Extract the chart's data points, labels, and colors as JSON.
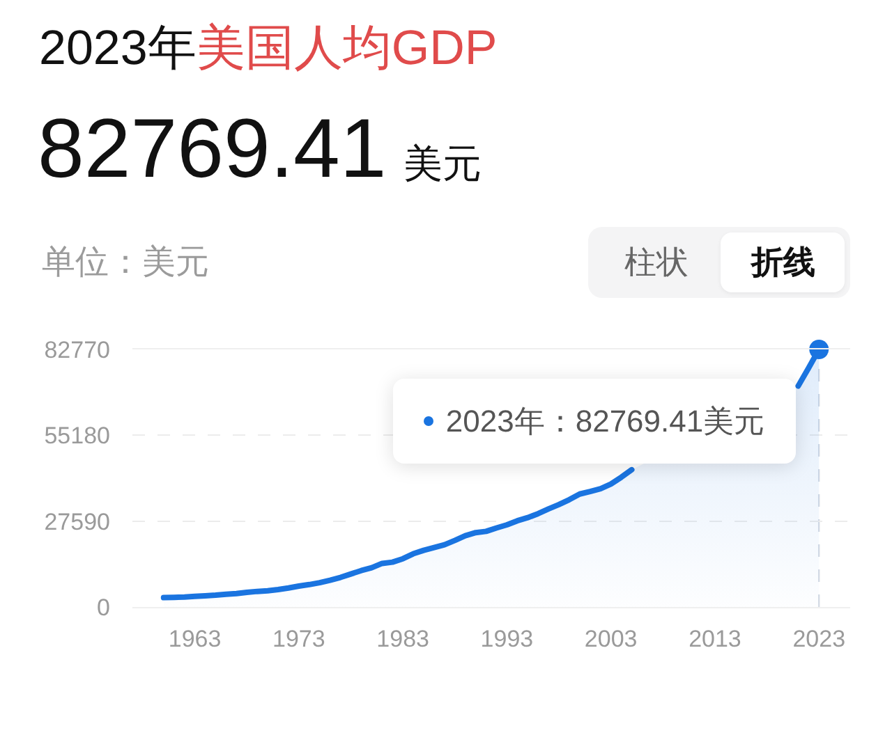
{
  "chart_data": {
    "type": "area",
    "title": "2023年美国人均GDP",
    "subtitle": "82769.41 美元",
    "ylabel": "单位：美元",
    "x": [
      1960,
      1961,
      1962,
      1963,
      1964,
      1965,
      1966,
      1967,
      1968,
      1969,
      1970,
      1971,
      1972,
      1973,
      1974,
      1975,
      1976,
      1977,
      1978,
      1979,
      1980,
      1981,
      1982,
      1983,
      1984,
      1985,
      1986,
      1987,
      1988,
      1989,
      1990,
      1991,
      1992,
      1993,
      1994,
      1995,
      1996,
      1997,
      1998,
      1999,
      2000,
      2001,
      2002,
      2003,
      2004,
      2005,
      2006,
      2007,
      2008,
      2009,
      2010,
      2011,
      2012,
      2013,
      2014,
      2015,
      2016,
      2017,
      2018,
      2019,
      2020,
      2021,
      2022,
      2023
    ],
    "values": [
      3000,
      3100,
      3200,
      3400,
      3600,
      3800,
      4100,
      4300,
      4700,
      5000,
      5200,
      5600,
      6100,
      6700,
      7200,
      7800,
      8600,
      9500,
      10600,
      11700,
      12600,
      14000,
      14400,
      15500,
      17100,
      18200,
      19100,
      20000,
      21400,
      22900,
      23900,
      24300,
      25400,
      26400,
      27700,
      28700,
      30000,
      31500,
      32900,
      34500,
      36300,
      37100,
      38000,
      39500,
      41700,
      44100,
      null,
      null,
      null,
      null,
      null,
      null,
      null,
      null,
      null,
      null,
      null,
      null,
      null,
      null,
      null,
      71000,
      76800,
      82769.41
    ],
    "color": "#1a74e0",
    "xlim": [
      1957,
      2026
    ],
    "xticks": [
      1963,
      1973,
      1983,
      1993,
      2003,
      2013,
      2023
    ],
    "ylim": [
      0,
      82770
    ],
    "yticks": [
      0,
      27590,
      55180,
      82770
    ],
    "grid": "y",
    "ref_lines": [
      {
        "axis": "x",
        "value": 2023,
        "color": "#d6dce5",
        "line_style": "dashed"
      }
    ],
    "annotations": [
      {
        "text": "2023年：82769.41美元",
        "x": 2023,
        "y": 82769.41
      },
      "柱状",
      "折线"
    ]
  }
}
